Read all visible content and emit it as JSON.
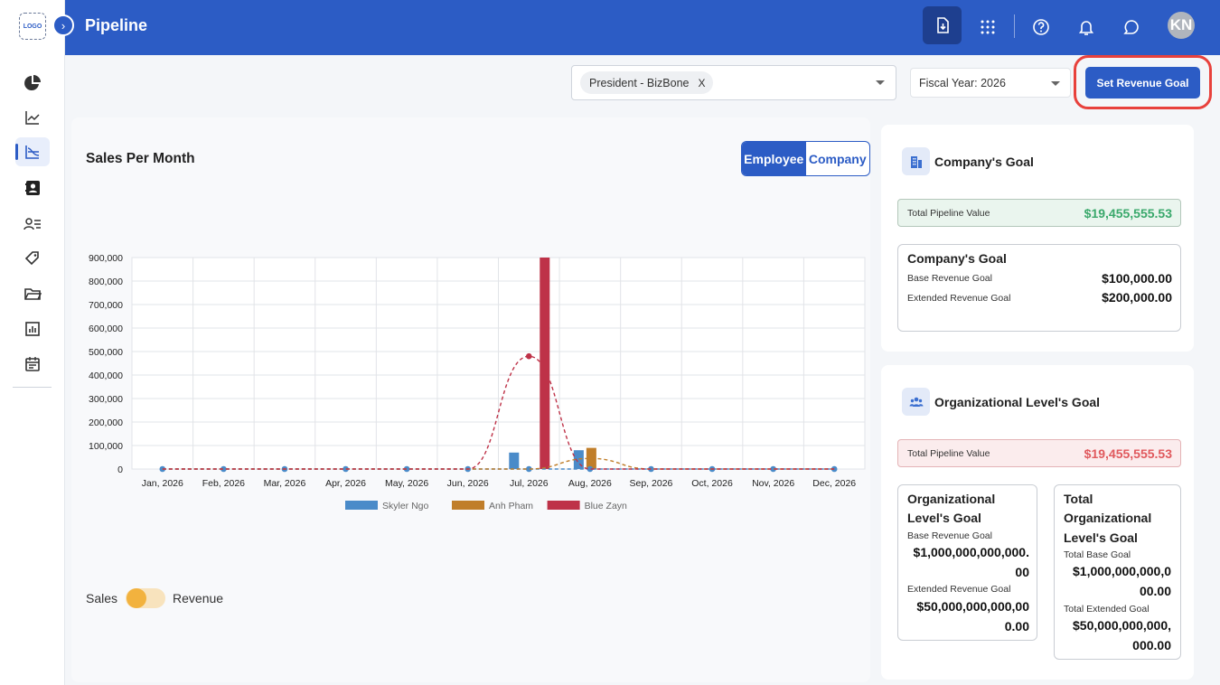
{
  "sidebar": {
    "logo_text": "LOGO",
    "collapse_glyph": "›",
    "items": [
      {
        "name": "pie-chart-icon"
      },
      {
        "name": "trend-chart-icon"
      },
      {
        "name": "pipeline-chart-icon",
        "active": true
      },
      {
        "name": "contacts-book-icon"
      },
      {
        "name": "user-list-icon"
      },
      {
        "name": "tag-icon"
      },
      {
        "name": "folder-icon"
      },
      {
        "name": "report-icon"
      },
      {
        "name": "calendar-icon"
      }
    ]
  },
  "header": {
    "title": "Pipeline",
    "avatar_initials": "KN",
    "icons": [
      "download-icon",
      "apps-grid-icon",
      "help-icon",
      "bell-icon",
      "chat-icon"
    ]
  },
  "filters": {
    "selected_chip": "President - BizBone",
    "chip_remove": "X",
    "fiscal_year": "Fiscal Year: 2026",
    "set_goal_label": "Set Revenue Goal"
  },
  "chart_panel": {
    "title": "Sales Per Month",
    "toggle_employee": "Employee",
    "toggle_company": "Company",
    "switch_left": "Sales",
    "switch_right": "Revenue"
  },
  "chart_data": {
    "type": "bar",
    "categories": [
      "Jan, 2026",
      "Feb, 2026",
      "Mar, 2026",
      "Apr, 2026",
      "May, 2026",
      "Jun, 2026",
      "Jul, 2026",
      "Aug, 2026",
      "Sep, 2026",
      "Oct, 2026",
      "Nov, 2026",
      "Dec, 2026"
    ],
    "y_ticks": [
      "900,000",
      "800,000",
      "700,000",
      "600,000",
      "500,000",
      "400,000",
      "300,000",
      "200,000",
      "100,000",
      "0"
    ],
    "ylim": [
      0,
      900000
    ],
    "grid": true,
    "legend_position": "bottom",
    "series": [
      {
        "name": "Skyler Ngo",
        "color": "#4a8bc9",
        "values": [
          0,
          0,
          0,
          0,
          0,
          0,
          70000,
          80000,
          0,
          0,
          0,
          0
        ],
        "trend": [
          0,
          0,
          0,
          0,
          0,
          0,
          0,
          0,
          0,
          0,
          0,
          0
        ]
      },
      {
        "name": "Anh Pham",
        "color": "#c07e2a",
        "values": [
          0,
          0,
          0,
          0,
          0,
          0,
          0,
          90000,
          0,
          0,
          0,
          0
        ],
        "trend": [
          0,
          0,
          0,
          0,
          0,
          0,
          0,
          45000,
          0,
          0,
          0,
          0
        ]
      },
      {
        "name": "Blue Zayn",
        "color": "#be3248",
        "values": [
          0,
          0,
          0,
          0,
          0,
          0,
          900000,
          0,
          0,
          0,
          0,
          0
        ],
        "trend": [
          0,
          0,
          0,
          0,
          0,
          0,
          480000,
          0,
          0,
          0,
          0,
          0
        ]
      }
    ]
  },
  "company_goal": {
    "heading": "Company's Goal",
    "pipeline_label": "Total Pipeline Value",
    "pipeline_value": "$19,455,555.53",
    "box_title": "Company's Goal",
    "base_label": "Base Revenue Goal",
    "base_value": "$100,000.00",
    "extended_label": "Extended Revenue Goal",
    "extended_value": "$200,000.00"
  },
  "org_goal": {
    "heading": "Organizational Level's Goal",
    "pipeline_label": "Total Pipeline Value",
    "pipeline_value": "$19,455,555.53",
    "left_title_1": "Organizational",
    "left_title_2": "Level's Goal",
    "left_base_label": "Base Revenue Goal",
    "left_base_value_1": "$1,000,000,000,000.",
    "left_base_value_2": "00",
    "left_ext_label": "Extended Revenue Goal",
    "left_ext_value_1": "$50,000,000,000,00",
    "left_ext_value_2": "0.00",
    "right_title_1": "Total",
    "right_title_2": "Organizational",
    "right_title_3": "Level's Goal",
    "right_base_label": "Total Base Goal",
    "right_base_value_1": "$1,000,000,000,0",
    "right_base_value_2": "00.00",
    "right_ext_label": "Total Extended Goal",
    "right_ext_value_1": "$50,000,000,000,",
    "right_ext_value_2": "000.00"
  },
  "colors": {
    "brand": "#2c5cc5",
    "highlight_ring": "#e8413c",
    "positive": "#39a86b",
    "negative": "#e0595d"
  }
}
